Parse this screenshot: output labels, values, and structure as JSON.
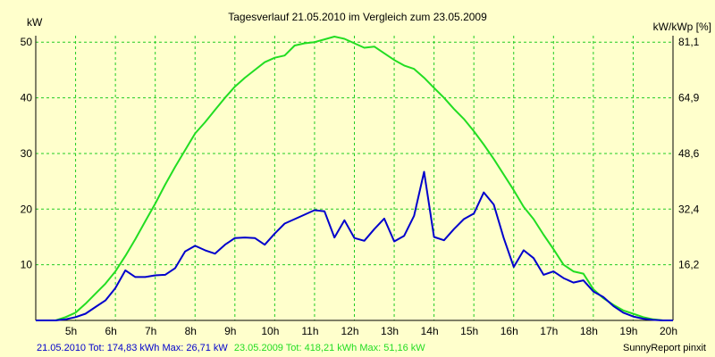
{
  "chart_data": {
    "type": "line",
    "title": "Tagesverlauf 21.05.2010 im Vergleich zum 23.05.2009",
    "ylabel_left": "kW",
    "ylabel_right": "kW/kWp [%]",
    "ylim": [
      0,
      51.16
    ],
    "xlim": [
      4.0,
      20.0
    ],
    "grid": true,
    "y_ticks": [
      10,
      20,
      30,
      40,
      50
    ],
    "y_tick_labels": [
      "10",
      "20",
      "30",
      "40",
      "50"
    ],
    "y2_ticks": [
      10,
      20,
      30,
      40,
      50
    ],
    "y2_tick_labels": [
      "16,2",
      "32,4",
      "48,6",
      "64,9",
      "81,1"
    ],
    "x_ticks": [
      5,
      6,
      7,
      8,
      9,
      10,
      11,
      12,
      13,
      14,
      15,
      16,
      17,
      18,
      19,
      20
    ],
    "x_tick_labels": [
      "5h",
      "6h",
      "7h",
      "8h",
      "9h",
      "10h",
      "11h",
      "12h",
      "13h",
      "14h",
      "15h",
      "16h",
      "17h",
      "18h",
      "19h",
      "20h"
    ],
    "series": [
      {
        "name": "21.05.2010 Tot: 174,83 kWh Max: 26,71 kW",
        "color": "#0000cc",
        "points": [
          [
            4.0,
            0
          ],
          [
            4.5,
            0
          ],
          [
            4.75,
            0.2
          ],
          [
            5.0,
            0.6
          ],
          [
            5.25,
            1.2
          ],
          [
            5.5,
            2.4
          ],
          [
            5.75,
            3.6
          ],
          [
            6.0,
            5.8
          ],
          [
            6.25,
            9.0
          ],
          [
            6.5,
            7.8
          ],
          [
            6.75,
            7.8
          ],
          [
            7.0,
            8.1
          ],
          [
            7.25,
            8.2
          ],
          [
            7.5,
            9.4
          ],
          [
            7.75,
            12.4
          ],
          [
            8.0,
            13.4
          ],
          [
            8.25,
            12.6
          ],
          [
            8.5,
            12.0
          ],
          [
            8.75,
            13.6
          ],
          [
            9.0,
            14.8
          ],
          [
            9.25,
            14.9
          ],
          [
            9.5,
            14.8
          ],
          [
            9.75,
            13.6
          ],
          [
            10.0,
            15.6
          ],
          [
            10.25,
            17.4
          ],
          [
            10.5,
            18.2
          ],
          [
            10.75,
            19.0
          ],
          [
            11.0,
            19.8
          ],
          [
            11.25,
            19.6
          ],
          [
            11.5,
            14.9
          ],
          [
            11.75,
            18.0
          ],
          [
            12.0,
            14.8
          ],
          [
            12.25,
            14.3
          ],
          [
            12.5,
            16.4
          ],
          [
            12.75,
            18.3
          ],
          [
            13.0,
            14.2
          ],
          [
            13.25,
            15.2
          ],
          [
            13.5,
            18.8
          ],
          [
            13.75,
            26.7
          ],
          [
            14.0,
            15.0
          ],
          [
            14.25,
            14.4
          ],
          [
            14.5,
            16.4
          ],
          [
            14.75,
            18.2
          ],
          [
            15.0,
            19.2
          ],
          [
            15.25,
            23.0
          ],
          [
            15.5,
            20.8
          ],
          [
            15.75,
            14.8
          ],
          [
            16.0,
            9.6
          ],
          [
            16.25,
            12.6
          ],
          [
            16.5,
            11.2
          ],
          [
            16.75,
            8.2
          ],
          [
            17.0,
            8.8
          ],
          [
            17.25,
            7.6
          ],
          [
            17.5,
            6.8
          ],
          [
            17.75,
            7.2
          ],
          [
            18.0,
            5.2
          ],
          [
            18.25,
            4.2
          ],
          [
            18.5,
            2.6
          ],
          [
            18.75,
            1.4
          ],
          [
            19.0,
            0.7
          ],
          [
            19.25,
            0.3
          ],
          [
            19.5,
            0.1
          ],
          [
            19.75,
            0
          ],
          [
            20.0,
            0
          ]
        ]
      },
      {
        "name": "23.05.2009 Tot: 418,21 kWh Max: 51,16 kW",
        "color": "#22dd22",
        "points": [
          [
            4.0,
            0
          ],
          [
            4.5,
            0
          ],
          [
            4.75,
            0.6
          ],
          [
            5.0,
            1.4
          ],
          [
            5.25,
            3.0
          ],
          [
            5.5,
            4.8
          ],
          [
            5.75,
            6.6
          ],
          [
            6.0,
            8.8
          ],
          [
            6.25,
            11.6
          ],
          [
            6.5,
            14.6
          ],
          [
            6.75,
            17.8
          ],
          [
            7.0,
            21.0
          ],
          [
            7.25,
            24.4
          ],
          [
            7.5,
            27.6
          ],
          [
            7.75,
            30.6
          ],
          [
            8.0,
            33.6
          ],
          [
            8.25,
            35.6
          ],
          [
            8.5,
            37.8
          ],
          [
            8.75,
            40.0
          ],
          [
            9.0,
            42.0
          ],
          [
            9.25,
            43.6
          ],
          [
            9.5,
            45.0
          ],
          [
            9.75,
            46.4
          ],
          [
            10.0,
            47.2
          ],
          [
            10.25,
            47.6
          ],
          [
            10.5,
            49.4
          ],
          [
            10.75,
            49.8
          ],
          [
            11.0,
            50.0
          ],
          [
            11.25,
            50.5
          ],
          [
            11.5,
            51.0
          ],
          [
            11.75,
            50.6
          ],
          [
            12.0,
            49.8
          ],
          [
            12.25,
            49.0
          ],
          [
            12.5,
            49.2
          ],
          [
            12.75,
            48.0
          ],
          [
            13.0,
            46.8
          ],
          [
            13.25,
            45.8
          ],
          [
            13.5,
            45.2
          ],
          [
            13.75,
            43.6
          ],
          [
            14.0,
            41.8
          ],
          [
            14.25,
            40.0
          ],
          [
            14.5,
            38.0
          ],
          [
            14.75,
            36.2
          ],
          [
            15.0,
            34.0
          ],
          [
            15.25,
            31.6
          ],
          [
            15.5,
            29.0
          ],
          [
            15.75,
            26.2
          ],
          [
            16.0,
            23.4
          ],
          [
            16.25,
            20.4
          ],
          [
            16.5,
            18.2
          ],
          [
            16.75,
            15.4
          ],
          [
            17.0,
            12.8
          ],
          [
            17.25,
            10.0
          ],
          [
            17.5,
            8.8
          ],
          [
            17.75,
            8.4
          ],
          [
            18.0,
            5.6
          ],
          [
            18.25,
            4.0
          ],
          [
            18.5,
            2.8
          ],
          [
            18.75,
            1.8
          ],
          [
            19.0,
            1.2
          ],
          [
            19.25,
            0.6
          ],
          [
            19.5,
            0.2
          ],
          [
            19.75,
            0
          ],
          [
            20.0,
            0
          ]
        ]
      }
    ],
    "footer_right": "SunnyReport pinxit"
  },
  "colors": {
    "background": "#ffffcc",
    "grid": "#22cc22",
    "axis": "#000000"
  }
}
